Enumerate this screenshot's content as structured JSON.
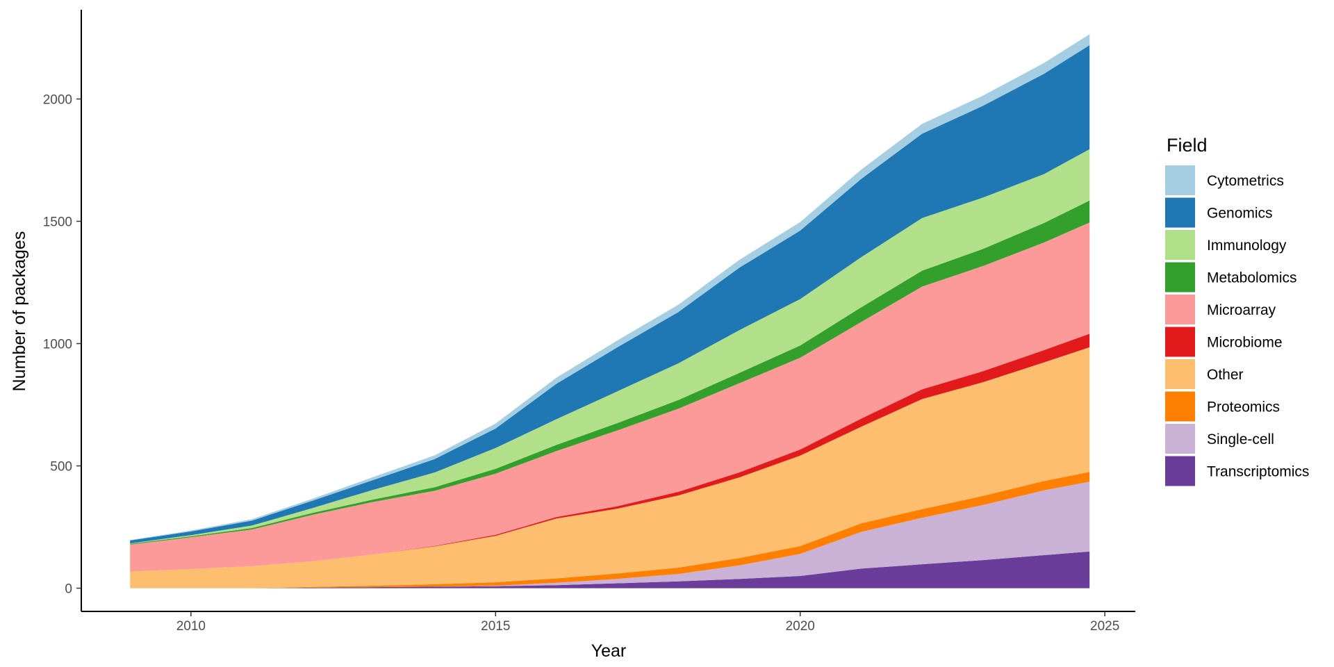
{
  "chart_data": {
    "type": "area",
    "stacked": true,
    "title": "",
    "xlabel": "Year",
    "ylabel": "Number of packages",
    "xlim": [
      2008.2,
      2025.5
    ],
    "ylim": [
      -95,
      2365
    ],
    "x_ticks": [
      2010,
      2015,
      2020,
      2025
    ],
    "x_tick_labels": [
      "2010",
      "2015",
      "2020",
      "2025"
    ],
    "y_ticks": [
      0,
      500,
      1000,
      1500,
      2000
    ],
    "y_tick_labels": [
      "0",
      "500",
      "1000",
      "1500",
      "2000"
    ],
    "grid": false,
    "legend_title": "Field",
    "legend_position": "right",
    "x": [
      2009.0,
      2010.0,
      2011.0,
      2012.0,
      2013.0,
      2014.0,
      2015.0,
      2016.0,
      2017.0,
      2018.0,
      2019.0,
      2020.0,
      2021.0,
      2022.0,
      2023.0,
      2024.0,
      2024.75
    ],
    "series": [
      {
        "name": "Transcriptomics",
        "color": "#6a3d9a",
        "values": [
          0,
          0,
          0,
          2,
          4,
          6,
          8,
          12,
          20,
          28,
          38,
          50,
          80,
          98,
          115,
          135,
          150
        ]
      },
      {
        "name": "Single-cell",
        "color": "#cab2d6",
        "values": [
          0,
          0,
          0,
          0,
          0,
          0,
          2,
          10,
          18,
          30,
          55,
          90,
          150,
          190,
          225,
          265,
          285
        ]
      },
      {
        "name": "Proteomics",
        "color": "#ff7f00",
        "values": [
          0,
          0,
          0,
          3,
          6,
          10,
          14,
          18,
          22,
          26,
          30,
          32,
          35,
          35,
          37,
          38,
          40
        ]
      },
      {
        "name": "Other",
        "color": "#fdbf6f",
        "values": [
          68,
          78,
          90,
          105,
          128,
          155,
          190,
          245,
          265,
          295,
          330,
          370,
          395,
          450,
          465,
          485,
          510
        ]
      },
      {
        "name": "Microbiome",
        "color": "#e31a1c",
        "values": [
          0,
          0,
          0,
          0,
          0,
          2,
          4,
          6,
          10,
          15,
          20,
          25,
          33,
          40,
          45,
          50,
          55
        ]
      },
      {
        "name": "Microarray",
        "color": "#fb9a99",
        "values": [
          110,
          130,
          150,
          190,
          215,
          225,
          250,
          270,
          310,
          340,
          365,
          375,
          395,
          420,
          430,
          440,
          455
        ]
      },
      {
        "name": "Metabolomics",
        "color": "#33a02c",
        "values": [
          3,
          4,
          6,
          8,
          10,
          15,
          20,
          25,
          30,
          35,
          42,
          50,
          60,
          65,
          70,
          80,
          90
        ]
      },
      {
        "name": "Immunology",
        "color": "#b2df8a",
        "values": [
          2,
          5,
          10,
          20,
          40,
          60,
          85,
          105,
          130,
          150,
          175,
          190,
          205,
          215,
          210,
          200,
          210
        ]
      },
      {
        "name": "Genomics",
        "color": "#1f78b4",
        "values": [
          12,
          15,
          20,
          30,
          40,
          55,
          80,
          145,
          180,
          210,
          255,
          280,
          320,
          345,
          375,
          410,
          425
        ]
      },
      {
        "name": "Cytometrics",
        "color": "#a6cee3",
        "values": [
          2,
          4,
          6,
          8,
          12,
          15,
          20,
          25,
          28,
          30,
          32,
          35,
          38,
          40,
          42,
          44,
          45
        ]
      }
    ],
    "legend_order": [
      "Cytometrics",
      "Genomics",
      "Immunology",
      "Metabolomics",
      "Microarray",
      "Microbiome",
      "Other",
      "Proteomics",
      "Single-cell",
      "Transcriptomics"
    ]
  }
}
